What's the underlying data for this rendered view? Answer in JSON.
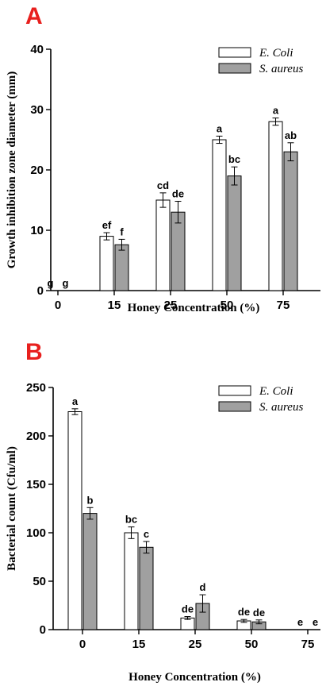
{
  "chart_data": [
    {
      "panel": "A",
      "type": "bar",
      "xlabel": "Honey Concentration (%)",
      "ylabel": "Growth inhibition zone diameter (mm)",
      "ylim": [
        0,
        40
      ],
      "yticks": [
        0,
        10,
        20,
        30,
        40
      ],
      "categories": [
        "0",
        "15",
        "25",
        "50",
        "75"
      ],
      "legend_position": "top-right",
      "series": [
        {
          "name": "E. Coli",
          "color": "#ffffff",
          "values": [
            0,
            9,
            15,
            25,
            28
          ],
          "errors": [
            0,
            0.6,
            1.2,
            0.6,
            0.6
          ],
          "labels": [
            "g",
            "ef",
            "cd",
            "a",
            "a"
          ]
        },
        {
          "name": "S. aureus",
          "color": "#a0a0a0",
          "values": [
            0,
            7.6,
            13,
            19,
            23
          ],
          "errors": [
            0,
            0.9,
            1.8,
            1.5,
            1.5
          ],
          "labels": [
            "g",
            "f",
            "de",
            "bc",
            "ab"
          ]
        }
      ]
    },
    {
      "panel": "B",
      "type": "bar",
      "xlabel": "Honey Concentration (%)",
      "ylabel": "Bacterial count (Cfu/ml)",
      "ylim": [
        0,
        250
      ],
      "yticks": [
        0,
        50,
        100,
        150,
        200,
        250
      ],
      "categories": [
        "0",
        "15",
        "25",
        "50",
        "75"
      ],
      "legend_position": "top-right",
      "series": [
        {
          "name": "E. Coli",
          "color": "#ffffff",
          "values": [
            225,
            100,
            12,
            9,
            0
          ],
          "errors": [
            3,
            6,
            1.5,
            1.5,
            0
          ],
          "labels": [
            "a",
            "bc",
            "de",
            "de",
            "e"
          ]
        },
        {
          "name": "S. aureus",
          "color": "#a0a0a0",
          "values": [
            120,
            85,
            27,
            8,
            0
          ],
          "errors": [
            6,
            6,
            9,
            2,
            0
          ],
          "labels": [
            "b",
            "c",
            "d",
            "de",
            "e"
          ]
        }
      ]
    }
  ]
}
